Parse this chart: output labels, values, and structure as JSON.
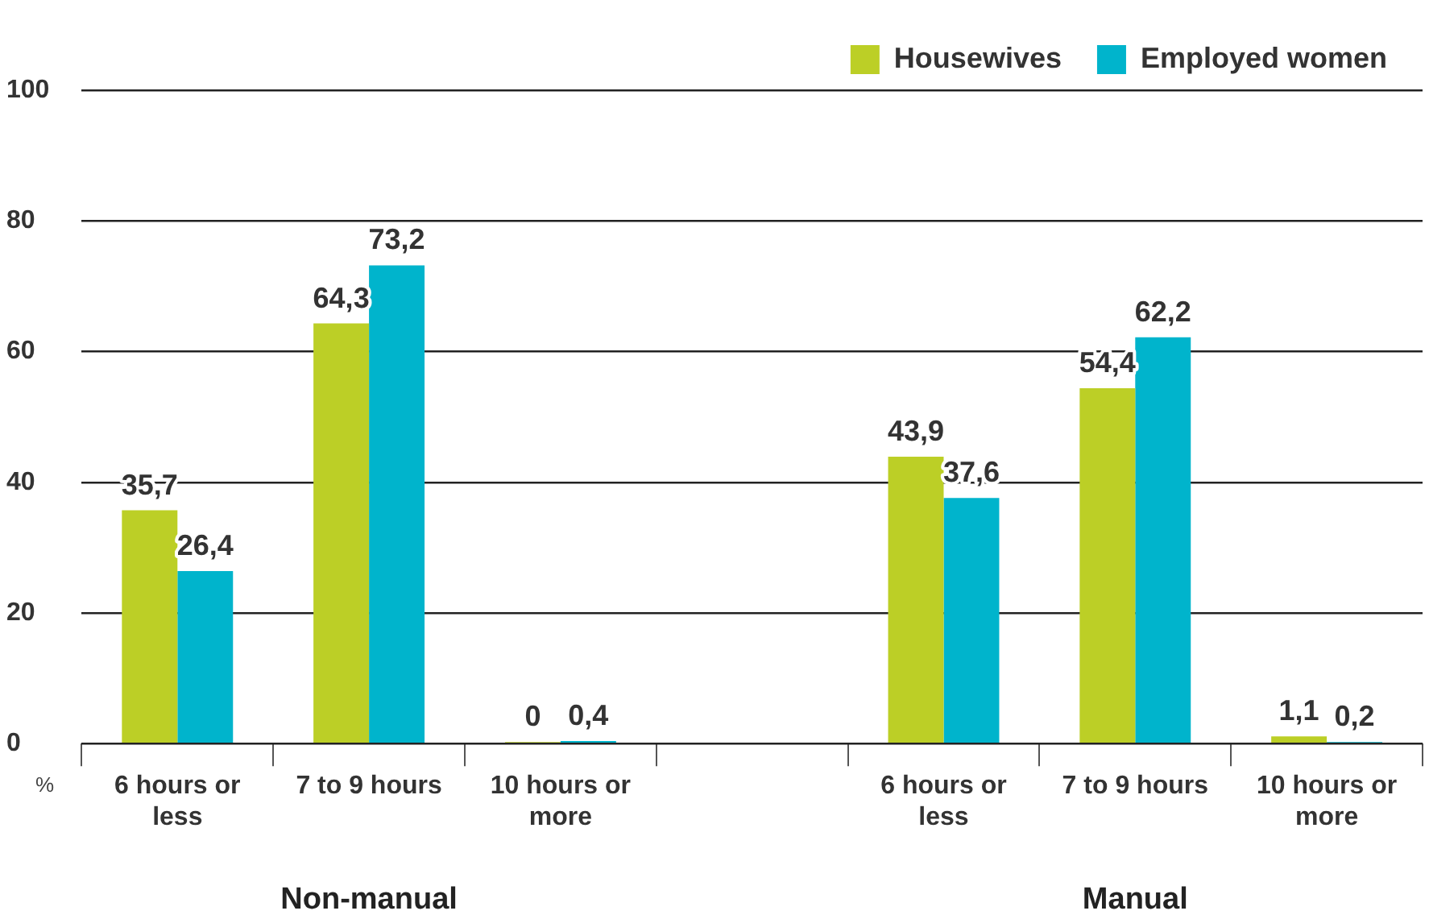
{
  "chart_data": {
    "type": "bar",
    "categories": [
      "6 hours or less",
      "7 to 9 hours",
      "10 hours or more",
      null,
      "6 hours or less",
      "7 to 9 hours",
      "10 hours or more"
    ],
    "series": [
      {
        "name": "Housewives",
        "color": "#bccf26",
        "values": [
          35.7,
          64.3,
          0,
          null,
          43.9,
          54.4,
          1.1
        ],
        "value_labels": [
          "35,7",
          "64,3",
          "0",
          null,
          "43,9",
          "54,4",
          "1,1"
        ]
      },
      {
        "name": "Employed women",
        "color": "#00b4cc",
        "values": [
          26.4,
          73.2,
          0.4,
          null,
          37.6,
          62.2,
          0.2
        ],
        "value_labels": [
          "26,4",
          "73,2",
          "0,4",
          null,
          "37,6",
          "62,2",
          "0,2"
        ]
      }
    ],
    "ylabel": "%",
    "ylim": [
      0,
      100
    ],
    "yticks": [
      0,
      20,
      40,
      60,
      80,
      100
    ],
    "grid": "y",
    "legend": "top right",
    "annotations": [
      "Non-manual",
      "Manual"
    ]
  }
}
